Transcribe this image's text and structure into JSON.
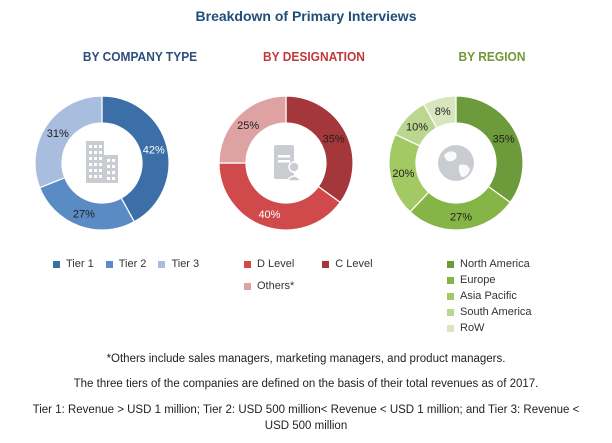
{
  "title": "Breakdown of Primary Interviews",
  "chart_data": [
    {
      "type": "pie",
      "title": "BY COMPANY TYPE",
      "title_color": "#2e4f7c",
      "categories": [
        "Tier 1",
        "Tier 2",
        "Tier 3"
      ],
      "values": [
        42,
        27,
        31
      ],
      "labels": [
        "42%",
        "27%",
        "31%"
      ],
      "colors": [
        "#3c6ea7",
        "#5b8bc5",
        "#a9bedf"
      ],
      "label_light": [
        true,
        false,
        false
      ],
      "center_icon": "building-icon",
      "legend": "bottom"
    },
    {
      "type": "pie",
      "title": "BY DESIGNATION",
      "title_color": "#c0393b",
      "categories": [
        "C Level",
        "D Level",
        "Others*"
      ],
      "values": [
        35,
        40,
        25
      ],
      "labels": [
        "35%",
        "40%",
        "25%"
      ],
      "colors": [
        "#a4373a",
        "#d04a4c",
        "#dea2a3"
      ],
      "label_light": [
        false,
        true,
        false
      ],
      "legend_order": [
        "D Level",
        "C Level",
        "Others*"
      ],
      "center_icon": "document-person-icon",
      "legend": "bottom"
    },
    {
      "type": "pie",
      "title": "BY REGION",
      "title_color": "#6f9a35",
      "categories": [
        "North America",
        "Europe",
        "Asia Pacific",
        "South America",
        "RoW"
      ],
      "values": [
        35,
        27,
        20,
        10,
        8
      ],
      "labels": [
        "35%",
        "27%",
        "20%",
        "10%",
        "8%"
      ],
      "colors": [
        "#6d9a3a",
        "#86b547",
        "#a2c964",
        "#bbd68f",
        "#d7e6bd"
      ],
      "label_light": [
        false,
        false,
        false,
        false,
        false
      ],
      "center_icon": "globe-icon",
      "legend": "bottom"
    }
  ],
  "notes": [
    "*Others include sales managers, marketing managers, and product managers.",
    "The three tiers of the companies are defined on the basis of their total revenues as of 2017.",
    "Tier 1: Revenue > USD 1 million; Tier 2: USD 500 million< Revenue < USD 1 million; and Tier 3: Revenue <",
    "USD 500 million"
  ]
}
